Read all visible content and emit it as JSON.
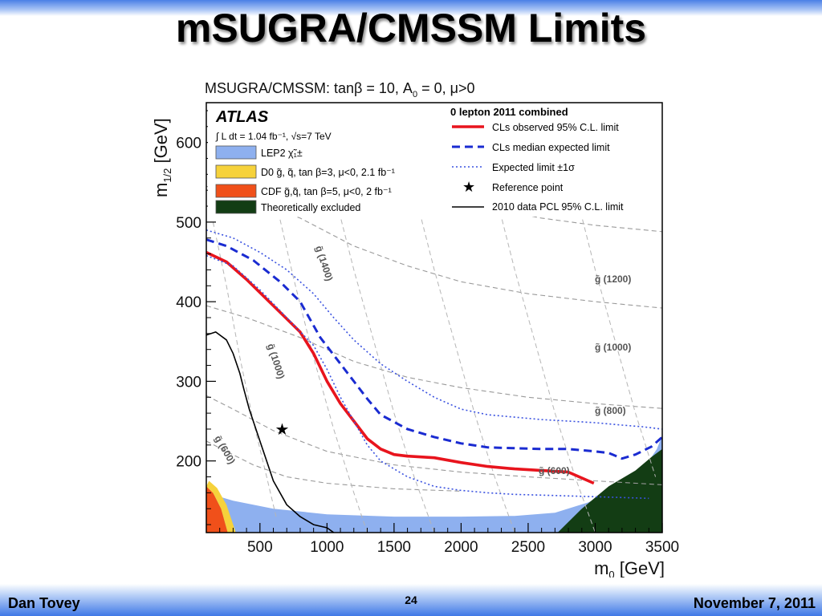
{
  "slide": {
    "title": "mSUGRA/CMSSM Limits",
    "author": "Dan Tovey",
    "page_number": "24",
    "date": "November 7, 2011"
  },
  "chart_data": {
    "type": "line",
    "title": "MSUGRA/CMSSM: tanβ = 10, A0 = 0, μ>0",
    "experiment": "ATLAS",
    "luminosity_text": "∫ L dt = 1.04 fb⁻¹, √s=7 TeV",
    "legend_header": "0 lepton 2011 combined",
    "xlabel": "m0 [GeV]",
    "ylabel": "m1/2 [GeV]",
    "xlim": [
      100,
      3500
    ],
    "ylim": [
      110,
      650
    ],
    "x_ticks": [
      500,
      1000,
      1500,
      2000,
      2500,
      3000,
      3500
    ],
    "y_ticks": [
      200,
      300,
      400,
      500,
      600
    ],
    "legend_left": [
      {
        "label": "LEP2 χ̃₁±",
        "color": "#8eb0ef"
      },
      {
        "label": "D0 g̃, q̃, tan β=3, μ<0, 2.1 fb⁻¹",
        "color": "#f6d23b"
      },
      {
        "label": "CDF g̃,q̃, tan β=5, μ<0, 2 fb⁻¹",
        "color": "#f0501a"
      },
      {
        "label": "Theoretically excluded",
        "color": "#133d14"
      }
    ],
    "legend_right": [
      {
        "label": "CLs observed 95% C.L. limit",
        "style": "solid",
        "color": "#e8141d"
      },
      {
        "label": "CLs median expected limit",
        "style": "dashed",
        "color": "#1a2bd1"
      },
      {
        "label": "Expected limit ±1σ",
        "style": "dotted",
        "color": "#3a52e0"
      },
      {
        "label": "Reference point",
        "style": "marker",
        "color": "#000000"
      },
      {
        "label": "2010 data PCL 95% C.L. limit",
        "style": "solid",
        "color": "#000000"
      }
    ],
    "series": [
      {
        "name": "CLs observed 95% C.L. limit",
        "color": "#e8141d",
        "dash": "",
        "width": 3.6,
        "x": [
          100,
          250,
          400,
          600,
          800,
          900,
          1000,
          1100,
          1200,
          1300,
          1400,
          1500,
          1600,
          1800,
          2000,
          2200,
          2400,
          2600,
          2800,
          2990
        ],
        "y": [
          462,
          450,
          428,
          395,
          362,
          335,
          300,
          272,
          250,
          228,
          215,
          208,
          206,
          204,
          198,
          193,
          190,
          188,
          186,
          172
        ]
      },
      {
        "name": "CLs median expected limit",
        "color": "#1a2bd1",
        "dash": "10,6",
        "width": 3,
        "x": [
          100,
          250,
          450,
          650,
          800,
          950,
          1100,
          1200,
          1300,
          1400,
          1600,
          1800,
          2000,
          2200,
          2400,
          2600,
          2800,
          3000,
          3100,
          3200,
          3300,
          3420,
          3500
        ],
        "y": [
          478,
          470,
          452,
          425,
          400,
          355,
          322,
          300,
          278,
          258,
          240,
          230,
          222,
          217,
          216,
          215,
          215,
          212,
          210,
          203,
          208,
          218,
          230
        ]
      },
      {
        "name": "Expected limit +1σ",
        "color": "#3a52e0",
        "dash": "2,3",
        "width": 1.6,
        "x": [
          100,
          300,
          500,
          700,
          900,
          1050,
          1200,
          1400,
          1600,
          1800,
          2000,
          2200,
          2400,
          2600,
          2800,
          3000,
          3200,
          3350,
          3500
        ],
        "y": [
          490,
          480,
          462,
          440,
          410,
          380,
          352,
          322,
          300,
          280,
          265,
          258,
          255,
          252,
          250,
          248,
          245,
          243,
          240
        ]
      },
      {
        "name": "Expected limit −1σ",
        "color": "#3a52e0",
        "dash": "2,3",
        "width": 1.6,
        "x": [
          100,
          300,
          500,
          700,
          900,
          1000,
          1100,
          1200,
          1300,
          1400,
          1600,
          1800,
          2000,
          2200,
          2400,
          2600,
          2800,
          3000,
          3200,
          3400
        ],
        "y": [
          458,
          445,
          415,
          380,
          345,
          315,
          280,
          250,
          220,
          200,
          180,
          168,
          163,
          160,
          158,
          157,
          156,
          155,
          154,
          153
        ]
      },
      {
        "name": "2010 data PCL 95% C.L. limit",
        "color": "#000000",
        "dash": "",
        "width": 1.6,
        "x": [
          100,
          170,
          250,
          300,
          350,
          380,
          420,
          500,
          550,
          600,
          700,
          800,
          900,
          1000,
          1050
        ],
        "y": [
          358,
          362,
          352,
          335,
          310,
          290,
          265,
          225,
          200,
          175,
          145,
          130,
          120,
          116,
          110
        ]
      }
    ],
    "reference_point": {
      "x": 660,
      "y": 240
    },
    "regions": [
      {
        "name": "LEP2 χ̃₁±",
        "color": "#8eb0ef"
      },
      {
        "name": "CDF g̃,q̃, tan β=5, μ<0, 2 fb⁻¹",
        "color": "#f0501a"
      },
      {
        "name": "D0 g̃, q̃, tan β=3, μ<0, 2.1 fb⁻¹",
        "color": "#f6d23b"
      },
      {
        "name": "Theoretically excluded",
        "color": "#133d14"
      }
    ],
    "gluino_contour_labels": [
      "g̃ (1400)",
      "g̃ (1200)",
      "g̃ (1000)",
      "g̃ (1000)",
      "g̃ (800)",
      "g̃ (600)",
      "g̃ (600)"
    ]
  }
}
